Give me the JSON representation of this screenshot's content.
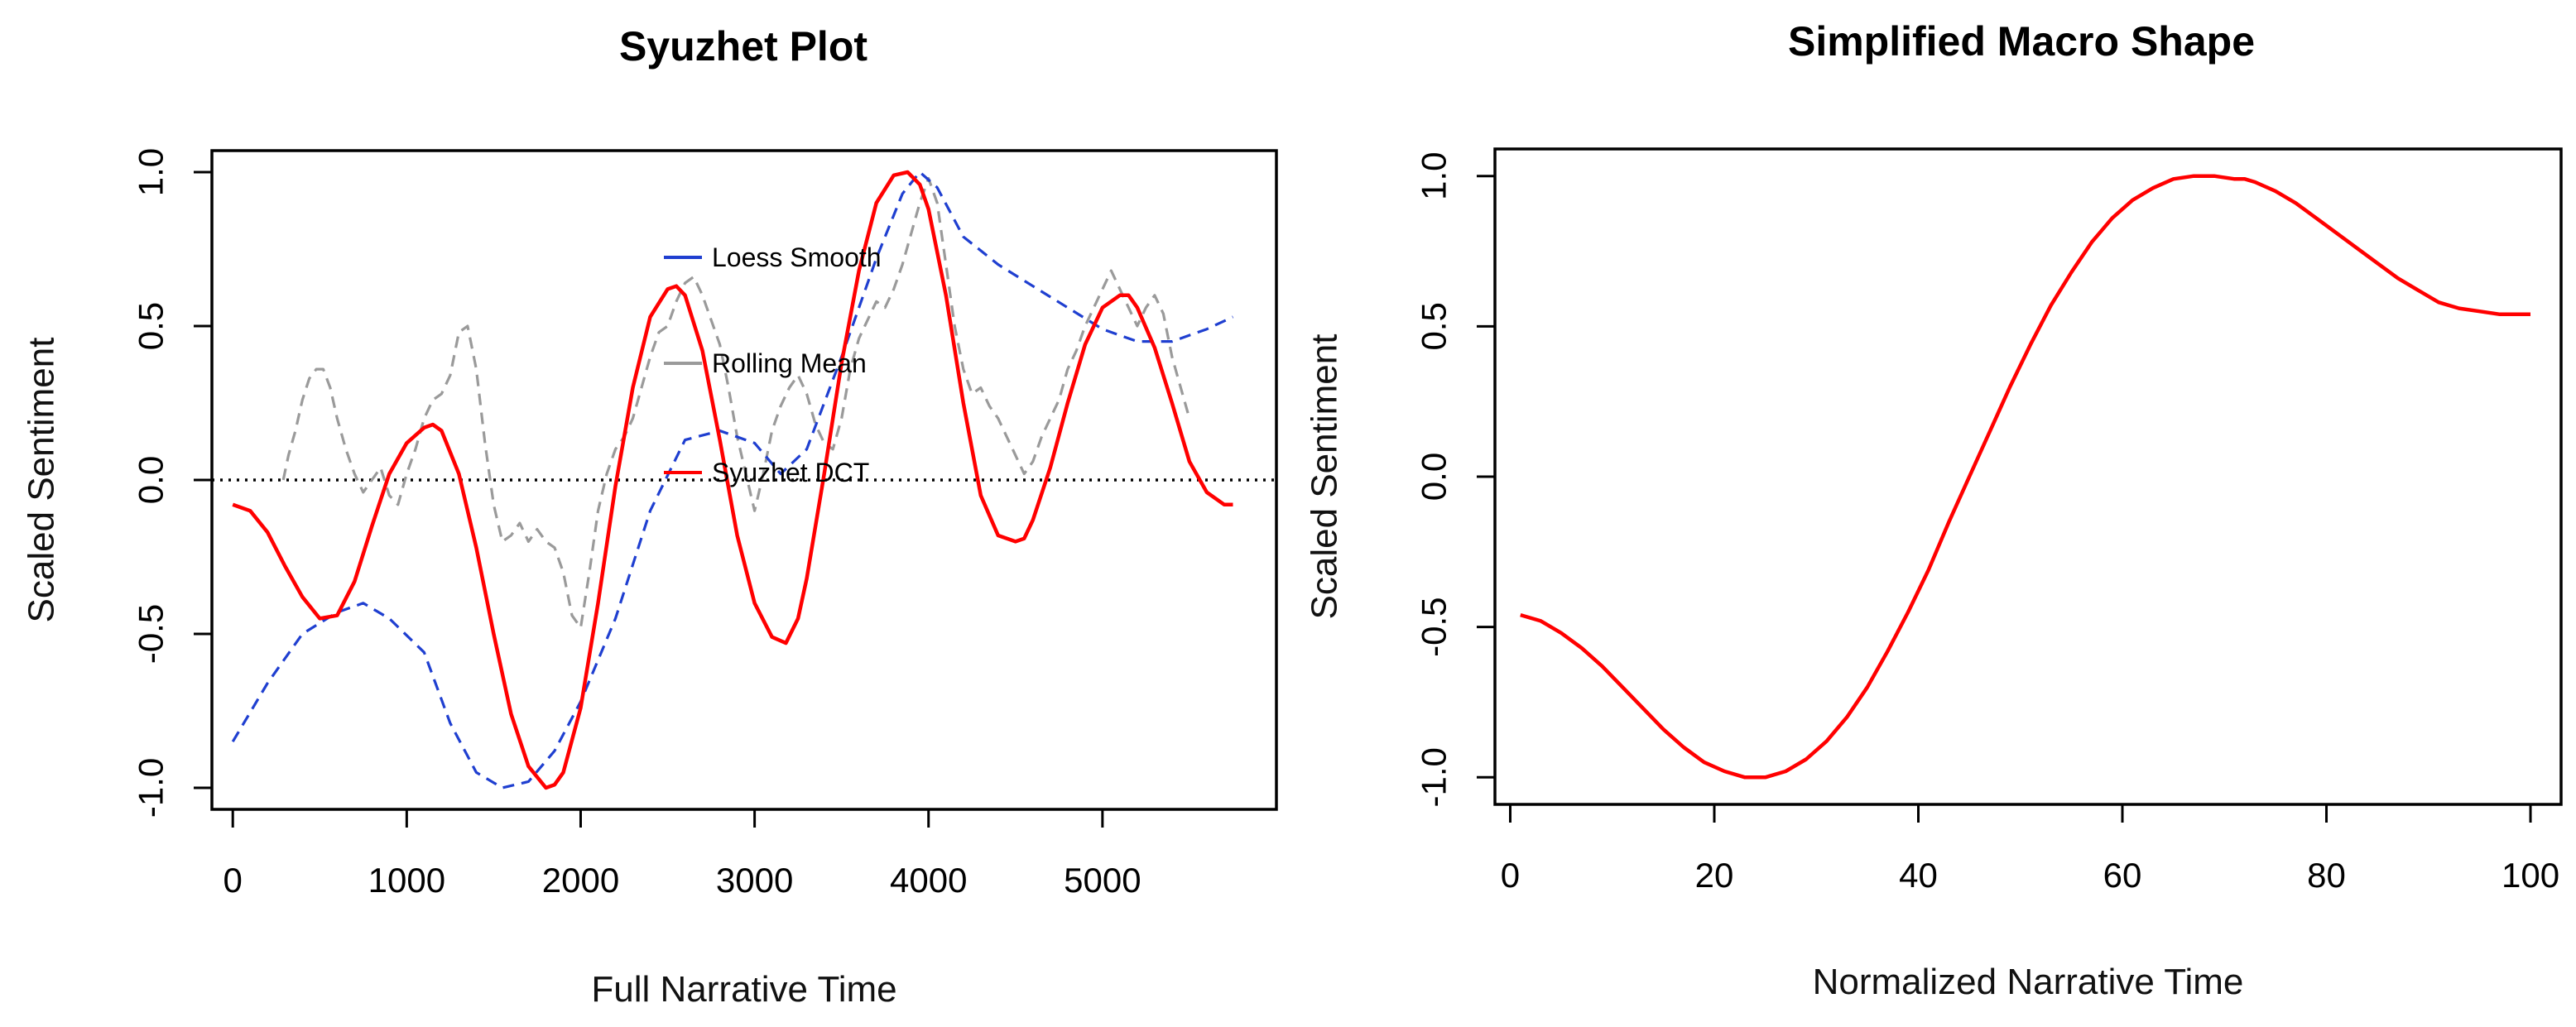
{
  "chart_data": [
    {
      "type": "line",
      "title": "Syuzhet Plot",
      "xlabel": "Full Narrative Time",
      "ylabel": "Scaled Sentiment",
      "xlim": [
        -120,
        6000
      ],
      "ylim": [
        -1.07,
        1.07
      ],
      "xticks": [
        0,
        1000,
        2000,
        3000,
        4000,
        5000
      ],
      "yticks": [
        -1.0,
        -0.5,
        0.0,
        0.5,
        1.0
      ],
      "xtick_labels": [
        "0",
        "1000",
        "2000",
        "3000",
        "4000",
        "5000"
      ],
      "ytick_labels": [
        "-1.0",
        "-0.5",
        "0.0",
        "0.5",
        "1.0"
      ],
      "reference_line": {
        "y": 0,
        "style": "dotted",
        "color": "#000000"
      },
      "legend": [
        {
          "label": "Loess Smooth",
          "color": "#1f3fd0"
        },
        {
          "label": "Rolling Mean",
          "color": "#9a9a9a"
        },
        {
          "label": "Syuzhet DCT",
          "color": "#ff0000"
        }
      ],
      "series": [
        {
          "name": "Loess Smooth",
          "color": "#1f3fd0",
          "style": "dashed",
          "x": [
            0,
            200,
            400,
            600,
            750,
            900,
            1100,
            1250,
            1400,
            1550,
            1700,
            1850,
            2000,
            2200,
            2400,
            2600,
            2800,
            3000,
            3150,
            3300,
            3500,
            3700,
            3850,
            3950,
            4050,
            4200,
            4400,
            4600,
            4800,
            5000,
            5200,
            5400,
            5600,
            5750
          ],
          "y": [
            -0.85,
            -0.66,
            -0.5,
            -0.43,
            -0.4,
            -0.45,
            -0.56,
            -0.79,
            -0.95,
            -1.0,
            -0.98,
            -0.88,
            -0.72,
            -0.45,
            -0.1,
            0.13,
            0.16,
            0.12,
            0.02,
            0.1,
            0.4,
            0.72,
            0.93,
            1.0,
            0.95,
            0.79,
            0.7,
            0.63,
            0.56,
            0.49,
            0.45,
            0.45,
            0.49,
            0.53
          ]
        },
        {
          "name": "Rolling Mean",
          "color": "#9a9a9a",
          "style": "dashed",
          "x": [
            290,
            320,
            360,
            400,
            440,
            480,
            520,
            560,
            600,
            650,
            700,
            750,
            800,
            850,
            900,
            950,
            1000,
            1050,
            1100,
            1150,
            1200,
            1250,
            1300,
            1350,
            1400,
            1450,
            1500,
            1550,
            1600,
            1650,
            1700,
            1750,
            1800,
            1850,
            1900,
            1950,
            2000,
            2050,
            2100,
            2150,
            2200,
            2250,
            2300,
            2350,
            2400,
            2450,
            2500,
            2550,
            2600,
            2650,
            2700,
            2750,
            2800,
            2850,
            2900,
            2950,
            3000,
            3050,
            3100,
            3150,
            3200,
            3250,
            3300,
            3350,
            3400,
            3450,
            3500,
            3550,
            3600,
            3650,
            3700,
            3750,
            3800,
            3850,
            3900,
            3950,
            4000,
            4050,
            4100,
            4150,
            4200,
            4250,
            4300,
            4350,
            4400,
            4450,
            4500,
            4550,
            4600,
            4650,
            4700,
            4750,
            4800,
            4850,
            4900,
            4950,
            5000,
            5050,
            5100,
            5150,
            5200,
            5250,
            5300,
            5350,
            5400,
            5450,
            5500
          ],
          "y": [
            0.0,
            0.08,
            0.16,
            0.26,
            0.33,
            0.36,
            0.36,
            0.3,
            0.2,
            0.1,
            0.02,
            -0.04,
            0.0,
            0.04,
            -0.05,
            -0.08,
            0.02,
            0.1,
            0.2,
            0.26,
            0.28,
            0.34,
            0.48,
            0.5,
            0.36,
            0.12,
            -0.08,
            -0.2,
            -0.18,
            -0.14,
            -0.2,
            -0.16,
            -0.2,
            -0.22,
            -0.3,
            -0.44,
            -0.48,
            -0.3,
            -0.1,
            0.02,
            0.1,
            0.14,
            0.2,
            0.3,
            0.4,
            0.48,
            0.5,
            0.58,
            0.64,
            0.66,
            0.6,
            0.52,
            0.44,
            0.3,
            0.14,
            0.02,
            -0.1,
            0.02,
            0.16,
            0.24,
            0.3,
            0.34,
            0.28,
            0.18,
            0.12,
            0.1,
            0.2,
            0.36,
            0.46,
            0.52,
            0.58,
            0.56,
            0.62,
            0.7,
            0.8,
            0.9,
            0.98,
            0.9,
            0.7,
            0.5,
            0.36,
            0.28,
            0.3,
            0.24,
            0.2,
            0.14,
            0.08,
            0.02,
            0.06,
            0.14,
            0.2,
            0.26,
            0.36,
            0.42,
            0.5,
            0.56,
            0.62,
            0.68,
            0.62,
            0.56,
            0.5,
            0.56,
            0.6,
            0.54,
            0.4,
            0.3,
            0.2
          ]
        },
        {
          "name": "Syuzhet DCT",
          "color": "#ff0000",
          "style": "solid",
          "x": [
            0,
            100,
            200,
            300,
            400,
            500,
            600,
            700,
            800,
            900,
            1000,
            1100,
            1150,
            1200,
            1300,
            1400,
            1500,
            1600,
            1700,
            1800,
            1850,
            1900,
            2000,
            2100,
            2200,
            2300,
            2400,
            2500,
            2550,
            2600,
            2700,
            2800,
            2900,
            3000,
            3100,
            3180,
            3250,
            3300,
            3400,
            3500,
            3600,
            3700,
            3800,
            3880,
            3950,
            4000,
            4100,
            4200,
            4300,
            4400,
            4500,
            4550,
            4600,
            4700,
            4800,
            4900,
            5000,
            5100,
            5150,
            5200,
            5300,
            5400,
            5500,
            5600,
            5700,
            5750
          ],
          "y": [
            -0.08,
            -0.1,
            -0.17,
            -0.28,
            -0.38,
            -0.45,
            -0.44,
            -0.33,
            -0.15,
            0.02,
            0.12,
            0.17,
            0.18,
            0.16,
            0.02,
            -0.22,
            -0.5,
            -0.76,
            -0.93,
            -1.0,
            -0.99,
            -0.95,
            -0.74,
            -0.4,
            -0.02,
            0.3,
            0.53,
            0.62,
            0.63,
            0.6,
            0.42,
            0.13,
            -0.18,
            -0.4,
            -0.51,
            -0.53,
            -0.45,
            -0.32,
            0.02,
            0.38,
            0.68,
            0.9,
            0.99,
            1.0,
            0.96,
            0.88,
            0.6,
            0.25,
            -0.05,
            -0.18,
            -0.2,
            -0.19,
            -0.13,
            0.04,
            0.25,
            0.44,
            0.56,
            0.6,
            0.6,
            0.56,
            0.43,
            0.25,
            0.06,
            -0.04,
            -0.08,
            -0.08
          ]
        }
      ]
    },
    {
      "type": "line",
      "title": "Simplified Macro Shape",
      "xlabel": "Normalized Narrative Time",
      "ylabel": "Scaled Sentiment",
      "xlim": [
        -1.5,
        103
      ],
      "ylim": [
        -1.09,
        1.09
      ],
      "xticks": [
        0,
        20,
        40,
        60,
        80,
        100
      ],
      "yticks": [
        -1.0,
        -0.5,
        0.0,
        0.5,
        1.0
      ],
      "xtick_labels": [
        "0",
        "20",
        "40",
        "60",
        "80",
        "100"
      ],
      "ytick_labels": [
        "-1.0",
        "-0.5",
        "0.0",
        "0.5",
        "1.0"
      ],
      "series": [
        {
          "name": "Simplified Macro Shape",
          "color": "#ff0000",
          "style": "solid",
          "x": [
            1,
            3,
            5,
            7,
            9,
            11,
            13,
            15,
            17,
            19,
            21,
            23,
            25,
            27,
            29,
            31,
            33,
            35,
            37,
            39,
            41,
            43,
            45,
            47,
            49,
            51,
            53,
            55,
            57,
            59,
            61,
            63,
            65,
            67,
            69,
            71,
            72,
            73,
            75,
            77,
            79,
            81,
            83,
            85,
            87,
            89,
            91,
            93,
            95,
            97,
            99,
            100
          ],
          "y": [
            -0.46,
            -0.48,
            -0.52,
            -0.57,
            -0.63,
            -0.7,
            -0.77,
            -0.84,
            -0.9,
            -0.95,
            -0.98,
            -1.0,
            -1.0,
            -0.98,
            -0.94,
            -0.88,
            -0.8,
            -0.7,
            -0.58,
            -0.45,
            -0.31,
            -0.15,
            0.0,
            0.15,
            0.3,
            0.44,
            0.57,
            0.68,
            0.78,
            0.86,
            0.92,
            0.96,
            0.99,
            1.0,
            1.0,
            0.99,
            0.99,
            0.98,
            0.95,
            0.91,
            0.86,
            0.81,
            0.76,
            0.71,
            0.66,
            0.62,
            0.58,
            0.56,
            0.55,
            0.54,
            0.54,
            0.54
          ]
        }
      ]
    }
  ]
}
